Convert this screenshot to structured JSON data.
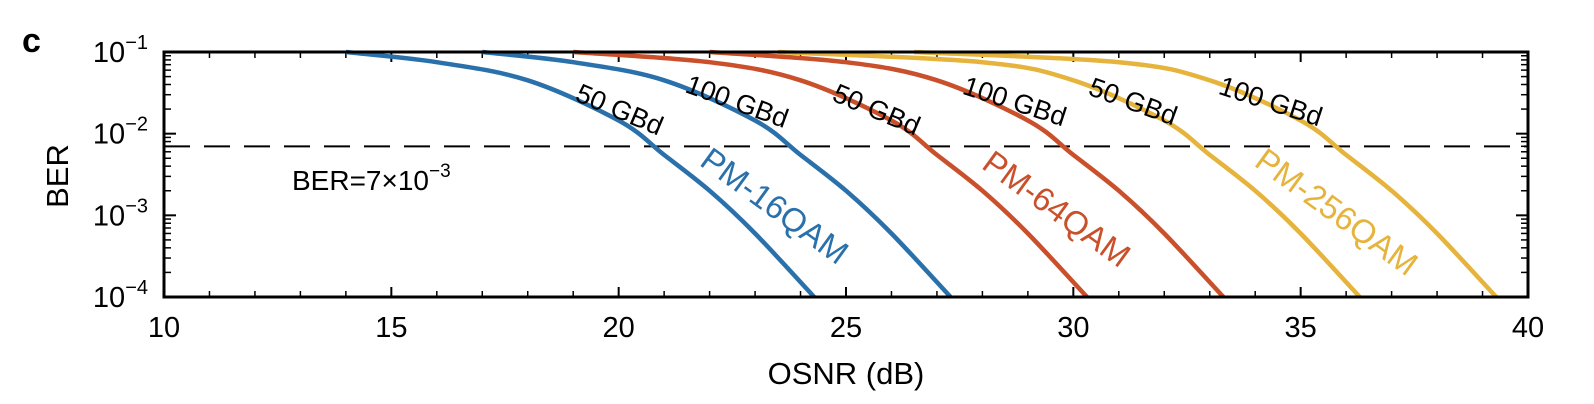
{
  "panel_label": "c",
  "chart_data": {
    "type": "line",
    "xlabel": "OSNR (dB)",
    "ylabel": "BER",
    "xlim": [
      10,
      40
    ],
    "ylim_log10": [
      -4,
      -1
    ],
    "y_scale": "log",
    "x_ticks": [
      "10",
      "15",
      "20",
      "25",
      "30",
      "35",
      "40"
    ],
    "y_ticks": [
      {
        "base": "10",
        "exp": "−4"
      },
      {
        "base": "10",
        "exp": "−3"
      },
      {
        "base": "10",
        "exp": "−2"
      },
      {
        "base": "10",
        "exp": "−1"
      }
    ],
    "threshold": {
      "value": 0.007,
      "label_main": "BER=7×10",
      "label_exp": "−3",
      "style": "dashed"
    },
    "colors": {
      "PM-16QAM": "#2a71ab",
      "PM-64QAM": "#c9502b",
      "PM-256QAM": "#e6b33c"
    },
    "formats": [
      {
        "name": "PM-16QAM",
        "color": "#2a71ab"
      },
      {
        "name": "PM-64QAM",
        "color": "#c9502b"
      },
      {
        "name": "PM-256QAM",
        "color": "#e6b33c"
      }
    ],
    "series": [
      {
        "format": "PM-16QAM",
        "rate": "50 GBd",
        "points": [
          [
            14.0,
            0.1
          ],
          [
            16,
            0.075
          ],
          [
            18,
            0.045
          ],
          [
            20,
            0.0145
          ],
          [
            21,
            0.0055
          ],
          [
            22,
            0.002
          ],
          [
            23,
            0.0006
          ],
          [
            24.3,
            0.0001
          ]
        ]
      },
      {
        "format": "PM-16QAM",
        "rate": "100 GBd",
        "points": [
          [
            17.0,
            0.1
          ],
          [
            19,
            0.075
          ],
          [
            21,
            0.045
          ],
          [
            23,
            0.0145
          ],
          [
            24,
            0.0055
          ],
          [
            25,
            0.002
          ],
          [
            26,
            0.0006
          ],
          [
            27.3,
            0.0001
          ]
        ]
      },
      {
        "format": "PM-64QAM",
        "rate": "50 GBd",
        "points": [
          [
            19.0,
            0.1
          ],
          [
            22,
            0.075
          ],
          [
            24,
            0.045
          ],
          [
            26,
            0.0145
          ],
          [
            27,
            0.0055
          ],
          [
            28,
            0.002
          ],
          [
            29,
            0.0006
          ],
          [
            30.3,
            0.0001
          ]
        ]
      },
      {
        "format": "PM-64QAM",
        "rate": "100 GBd",
        "points": [
          [
            22.0,
            0.1
          ],
          [
            25,
            0.075
          ],
          [
            27,
            0.045
          ],
          [
            29,
            0.0145
          ],
          [
            30,
            0.0055
          ],
          [
            31,
            0.002
          ],
          [
            32,
            0.0006
          ],
          [
            33.3,
            0.0001
          ]
        ]
      },
      {
        "format": "PM-256QAM",
        "rate": "50 GBd",
        "points": [
          [
            23.5,
            0.1
          ],
          [
            28,
            0.075
          ],
          [
            30,
            0.045
          ],
          [
            32,
            0.0145
          ],
          [
            33,
            0.0055
          ],
          [
            34,
            0.002
          ],
          [
            35,
            0.0006
          ],
          [
            36.3,
            0.0001
          ]
        ]
      },
      {
        "format": "PM-256QAM",
        "rate": "100 GBd",
        "points": [
          [
            26.5,
            0.1
          ],
          [
            31,
            0.075
          ],
          [
            33,
            0.045
          ],
          [
            35,
            0.0145
          ],
          [
            36,
            0.0055
          ],
          [
            37,
            0.002
          ],
          [
            38,
            0.0006
          ],
          [
            39.3,
            0.0001
          ]
        ]
      }
    ]
  }
}
